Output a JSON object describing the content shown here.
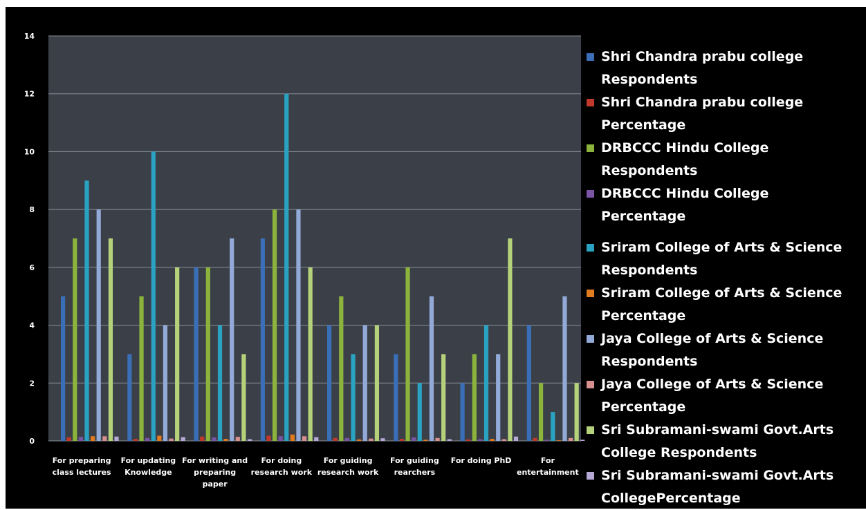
{
  "chart_data": {
    "type": "bar",
    "title": "",
    "xlabel": "",
    "ylabel": "",
    "ylim": [
      0,
      14
    ],
    "yticks": [
      0,
      2,
      4,
      6,
      8,
      10,
      12,
      14
    ],
    "grid": true,
    "legend_position": "right",
    "categories": [
      [
        "For preparing",
        "class lectures"
      ],
      [
        "For updating",
        "Knowledge"
      ],
      [
        "For writing and",
        "preparing",
        "paper"
      ],
      [
        "For doing",
        "research work"
      ],
      [
        "For guiding",
        "research work"
      ],
      [
        "For guiding",
        "rearchers"
      ],
      [
        "For doing PhD"
      ],
      [
        "For",
        "entertainment"
      ]
    ],
    "series": [
      {
        "name": "Shri Chandra prabu college Respondents",
        "color": "#3a6fb8",
        "values": [
          5,
          3,
          6,
          7,
          4,
          3,
          2,
          4
        ]
      },
      {
        "name": "Shri Chandra prabu college Percentage",
        "color": "#c0392b",
        "values": [
          0.12,
          0.07,
          0.15,
          0.18,
          0.1,
          0.07,
          0.05,
          0.1
        ]
      },
      {
        "name": "DRBCCC Hindu College Respondents",
        "color": "#8cb43c",
        "values": [
          7,
          5,
          6,
          8,
          5,
          6,
          3,
          2
        ]
      },
      {
        "name": "DRBCCC Hindu College Percentage",
        "color": "#7a55a6",
        "values": [
          0.14,
          0.1,
          0.12,
          0.16,
          0.1,
          0.12,
          0.06,
          0.04
        ]
      },
      {
        "name": "Sriram College of Arts & Science Respondents",
        "color": "#2aa3c2",
        "values": [
          9,
          10,
          4,
          12,
          3,
          2,
          4,
          1
        ]
      },
      {
        "name": "Sriram College of Arts & Science Percentage",
        "color": "#e07b20",
        "values": [
          0.16,
          0.18,
          0.07,
          0.22,
          0.05,
          0.04,
          0.07,
          0.02
        ]
      },
      {
        "name": "Jaya College of Arts & Science Respondents",
        "color": "#93aad8",
        "values": [
          8,
          4,
          7,
          8,
          4,
          5,
          3,
          5
        ]
      },
      {
        "name": "Jaya College of Arts & Science Percentage",
        "color": "#d88f8f",
        "values": [
          0.16,
          0.08,
          0.14,
          0.16,
          0.08,
          0.1,
          0.06,
          0.1
        ]
      },
      {
        "name": "Sri Subramani-swami Govt.Arts College Respondents",
        "color": "#b5d17a",
        "values": [
          7,
          6,
          3,
          6,
          4,
          3,
          7,
          2
        ]
      },
      {
        "name": "Sri Subramani-swami Govt.Arts CollegePercentage",
        "color": "#b5a8d4",
        "values": [
          0.15,
          0.13,
          0.06,
          0.13,
          0.09,
          0.06,
          0.15,
          0.04
        ]
      }
    ]
  },
  "legend_items": [
    {
      "name": "Shri Chandra prabu college Respondents",
      "color": "#3a6fb8"
    },
    {
      "name": "Shri Chandra prabu college Percentage",
      "color": "#c0392b"
    },
    {
      "name": "DRBCCC Hindu College Respondents",
      "color": "#8cb43c"
    },
    {
      "name": "DRBCCC Hindu College Percentage",
      "color": "#7a55a6"
    },
    {
      "name": "Sriram College of Arts & Science Respondents",
      "color": "#2aa3c2"
    },
    {
      "name": "Sriram College of Arts & Science Percentage",
      "color": "#e07b20"
    },
    {
      "name": "Jaya College of Arts & Science Respondents",
      "color": "#93aad8"
    },
    {
      "name": "Jaya College of Arts & Science Percentage",
      "color": "#d88f8f"
    },
    {
      "name": "Sri Subramani-swami Govt.Arts College Respondents",
      "color": "#b5d17a"
    },
    {
      "name": "Sri Subramani-swami Govt.Arts CollegePercentage",
      "color": "#b5a8d4"
    }
  ]
}
